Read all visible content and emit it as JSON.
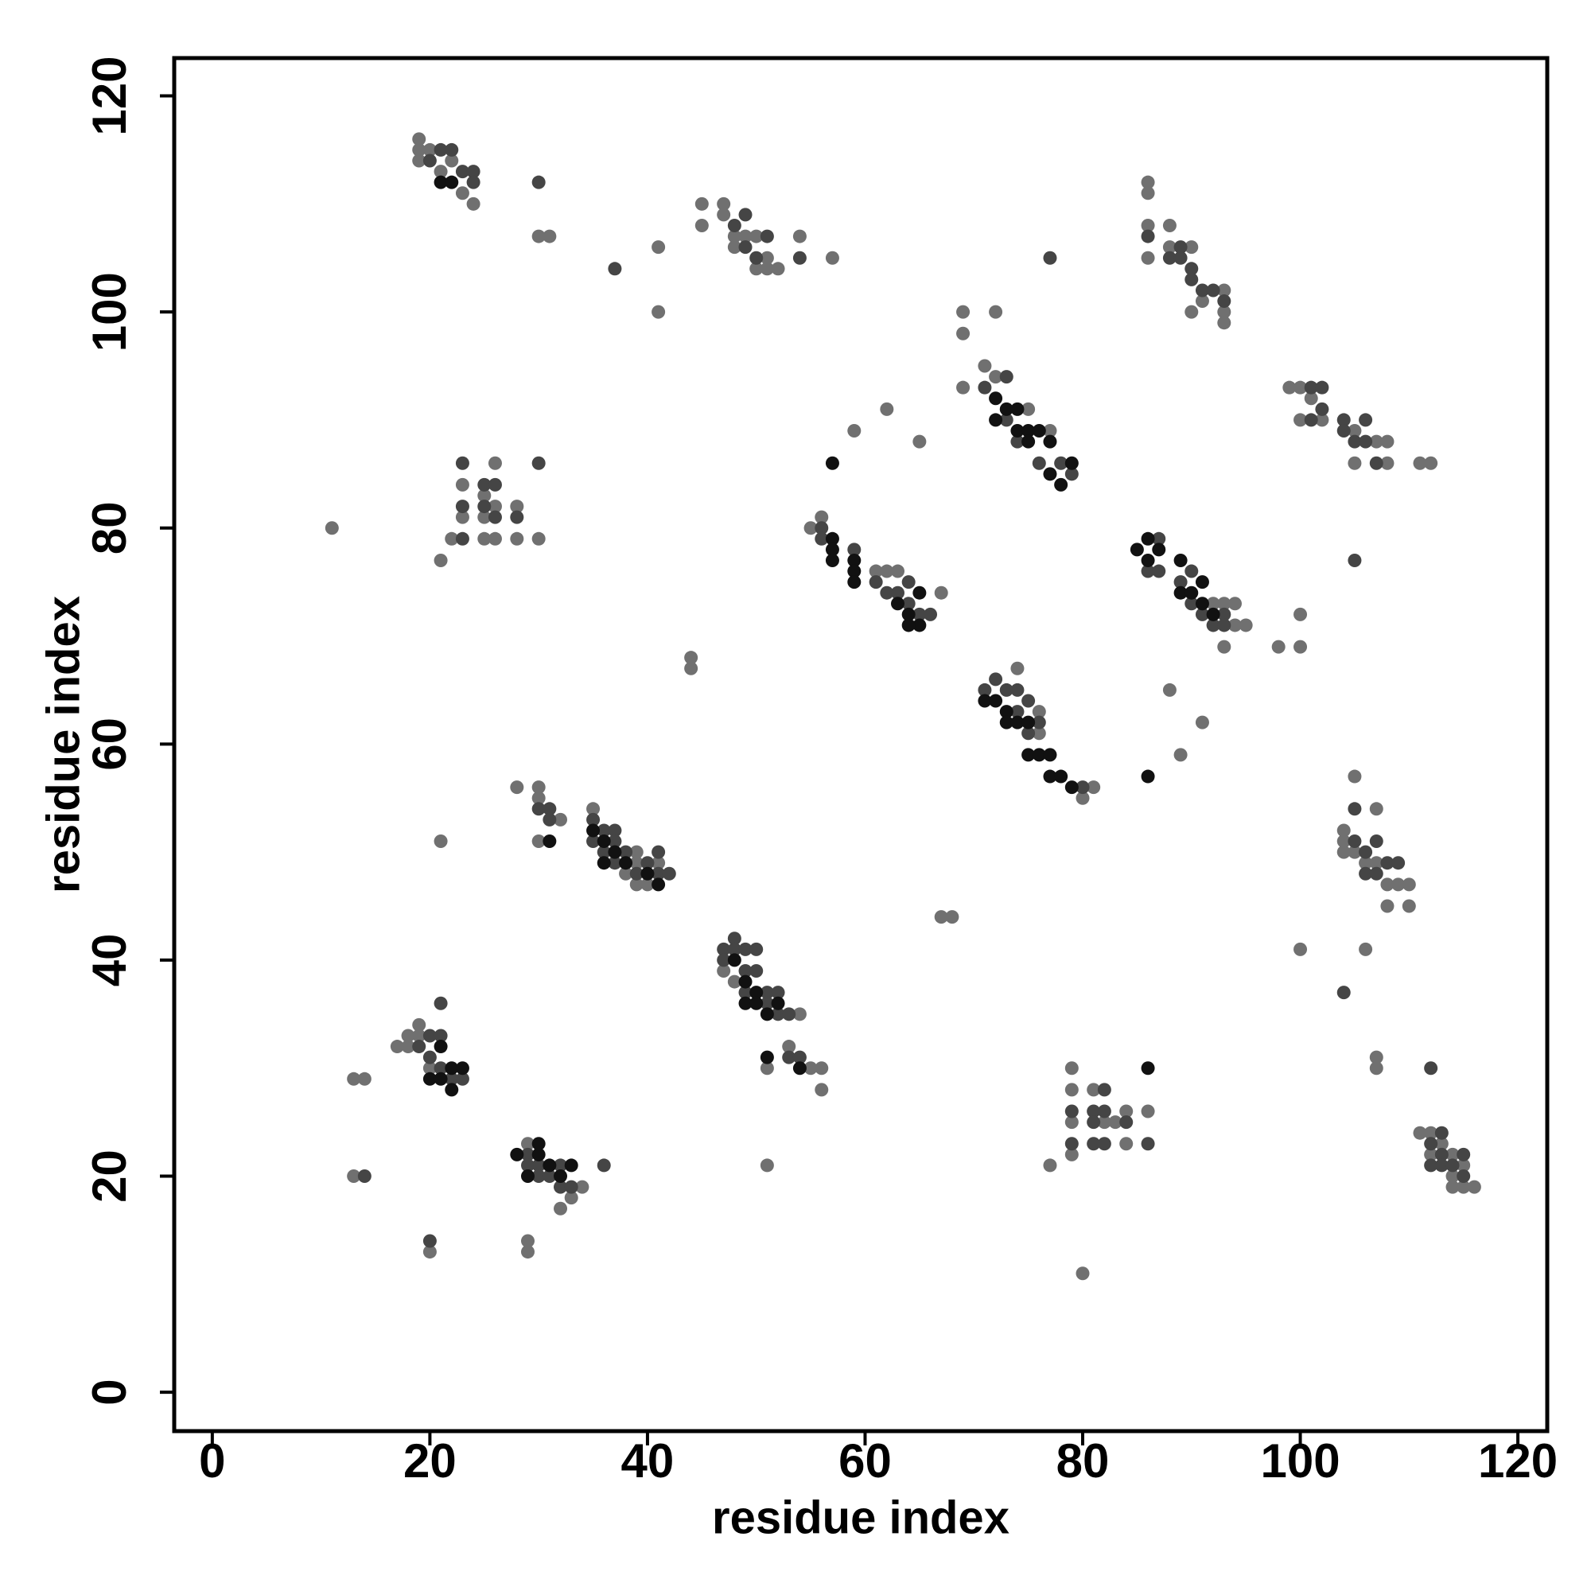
{
  "chart_data": {
    "type": "scatter",
    "x_label": "residue index",
    "y_label": "residue index",
    "xlim": [
      -3.5,
      122.7
    ],
    "ylim": [
      -3.6,
      123.5
    ],
    "xticks": [
      0,
      20,
      40,
      60,
      80,
      100,
      120
    ],
    "yticks": [
      0,
      20,
      40,
      60,
      80,
      100,
      120
    ],
    "grid": false,
    "series": [
      {
        "color": "#707070",
        "x": [
          19,
          19,
          19,
          20,
          21,
          22,
          23,
          24,
          30,
          31,
          41,
          41,
          45,
          45,
          47,
          47,
          48,
          48,
          49,
          50,
          50,
          51,
          51,
          52,
          54,
          57,
          86,
          86,
          86,
          86,
          88,
          88,
          90,
          90,
          91,
          93,
          93,
          93,
          69,
          69,
          69,
          72,
          71,
          72,
          75,
          77,
          59,
          62,
          65,
          99,
          100,
          100,
          101,
          102,
          105,
          105,
          107,
          108,
          108,
          111,
          112,
          11,
          21,
          22,
          23,
          23,
          25,
          25,
          25,
          26,
          26,
          26,
          28,
          28,
          30,
          55,
          56,
          61,
          62,
          63,
          67,
          92,
          93,
          94,
          94,
          95,
          93,
          98,
          100,
          100,
          44,
          44,
          74,
          76,
          76,
          80,
          81,
          88,
          91,
          89,
          28,
          30,
          30,
          32,
          30,
          21,
          35,
          39,
          39,
          39,
          40,
          41,
          38,
          105,
          107,
          104,
          104,
          104,
          105,
          106,
          107,
          108,
          108,
          109,
          110,
          110,
          67,
          68,
          100,
          106,
          47,
          48,
          54,
          53,
          55,
          56,
          56,
          51,
          17,
          18,
          18,
          19,
          19,
          20,
          13,
          14,
          107,
          107,
          79,
          79,
          79,
          79,
          81,
          82,
          83,
          84,
          84,
          86,
          77,
          80,
          29,
          32,
          33,
          34,
          13,
          20,
          29,
          29,
          51,
          111,
          112,
          112,
          113,
          114,
          114,
          114,
          115,
          115,
          116
        ],
        "values": [
          116,
          115,
          114,
          115,
          113,
          114,
          111,
          110,
          107,
          107,
          106,
          100,
          110,
          108,
          110,
          109,
          107,
          106,
          107,
          107,
          104,
          105,
          104,
          104,
          107,
          105,
          112,
          111,
          108,
          105,
          108,
          106,
          106,
          100,
          101,
          102,
          100,
          99,
          100,
          98,
          93,
          100,
          95,
          94,
          91,
          89,
          89,
          91,
          88,
          93,
          93,
          90,
          92,
          90,
          89,
          86,
          88,
          88,
          86,
          86,
          86,
          80,
          77,
          79,
          84,
          81,
          83,
          81,
          79,
          86,
          82,
          79,
          82,
          79,
          79,
          80,
          81,
          76,
          76,
          76,
          74,
          73,
          73,
          73,
          71,
          71,
          69,
          69,
          72,
          69,
          68,
          67,
          67,
          63,
          61,
          55,
          56,
          65,
          62,
          59,
          56,
          56,
          55,
          53,
          51,
          51,
          54,
          50,
          49,
          47,
          47,
          49,
          48,
          57,
          54,
          52,
          51,
          50,
          50,
          49,
          49,
          47,
          45,
          47,
          47,
          45,
          44,
          44,
          41,
          41,
          39,
          38,
          35,
          32,
          30,
          30,
          28,
          30,
          32,
          33,
          32,
          34,
          33,
          30,
          29,
          29,
          31,
          30,
          30,
          28,
          25,
          22,
          28,
          25,
          25,
          26,
          23,
          26,
          21,
          11,
          23,
          17,
          18,
          19,
          20,
          13,
          14,
          13,
          21,
          24,
          24,
          22,
          23,
          22,
          20,
          19,
          21,
          19,
          19
        ]
      },
      {
        "color": "#454545",
        "x": [
          21,
          22,
          20,
          23,
          24,
          24,
          30,
          37,
          48,
          49,
          49,
          50,
          51,
          54,
          77,
          86,
          88,
          89,
          89,
          90,
          90,
          91,
          92,
          93,
          71,
          73,
          73,
          74,
          76,
          78,
          79,
          101,
          102,
          102,
          101,
          104,
          104,
          105,
          106,
          106,
          107,
          23,
          23,
          23,
          25,
          25,
          26,
          26,
          30,
          28,
          56,
          56,
          59,
          61,
          62,
          63,
          64,
          64,
          65,
          66,
          86,
          87,
          87,
          89,
          90,
          90,
          91,
          92,
          93,
          93,
          105,
          71,
          72,
          73,
          74,
          74,
          75,
          75,
          76,
          80,
          30,
          31,
          31,
          35,
          35,
          36,
          36,
          37,
          37,
          37,
          38,
          39,
          40,
          41,
          41,
          42,
          47,
          47,
          48,
          48,
          49,
          49,
          49,
          50,
          50,
          51,
          51,
          52,
          52,
          53,
          53,
          54,
          105,
          105,
          106,
          106,
          107,
          107,
          108,
          109,
          104,
          19,
          20,
          20,
          21,
          21,
          21,
          22,
          23,
          112,
          79,
          79,
          81,
          81,
          81,
          82,
          82,
          82,
          84,
          86,
          29,
          29,
          30,
          30,
          31,
          32,
          32,
          33,
          36,
          112,
          112,
          113,
          113,
          113,
          114,
          115,
          115,
          14,
          20
        ],
        "values": [
          115,
          115,
          114,
          113,
          113,
          112,
          112,
          104,
          108,
          109,
          106,
          105,
          107,
          105,
          105,
          107,
          105,
          106,
          105,
          104,
          103,
          102,
          102,
          101,
          93,
          94,
          90,
          88,
          86,
          86,
          85,
          93,
          93,
          91,
          90,
          90,
          89,
          88,
          90,
          88,
          86,
          86,
          82,
          79,
          84,
          82,
          81,
          84,
          86,
          81,
          80,
          79,
          78,
          75,
          74,
          74,
          75,
          73,
          72,
          72,
          76,
          79,
          76,
          75,
          76,
          73,
          72,
          71,
          72,
          71,
          77,
          65,
          66,
          65,
          65,
          63,
          64,
          61,
          62,
          56,
          54,
          54,
          53,
          53,
          51,
          52,
          50,
          52,
          51,
          49,
          50,
          48,
          49,
          50,
          48,
          48,
          41,
          40,
          42,
          41,
          41,
          39,
          37,
          41,
          39,
          37,
          36,
          37,
          35,
          35,
          31,
          31,
          54,
          51,
          50,
          48,
          51,
          48,
          49,
          49,
          37,
          32,
          33,
          31,
          33,
          36,
          30,
          29,
          29,
          30,
          26,
          23,
          26,
          25,
          23,
          28,
          26,
          23,
          25,
          23,
          22,
          21,
          21,
          20,
          20,
          21,
          19,
          19,
          21,
          23,
          21,
          24,
          22,
          21,
          21,
          22,
          20,
          20,
          14
        ]
      },
      {
        "color": "#111111",
        "x": [
          72,
          73,
          72,
          74,
          74,
          75,
          75,
          76,
          77,
          77,
          78,
          79,
          57,
          57,
          57,
          57,
          59,
          59,
          59,
          63,
          64,
          65,
          64,
          65,
          85,
          86,
          86,
          87,
          89,
          89,
          90,
          91,
          91,
          92,
          71,
          72,
          73,
          73,
          74,
          75,
          75,
          76,
          77,
          77,
          78,
          79,
          86,
          31,
          35,
          36,
          36,
          37,
          38,
          40,
          41,
          48,
          49,
          49,
          50,
          50,
          51,
          52,
          51,
          54,
          20,
          21,
          21,
          22,
          22,
          23,
          28,
          29,
          30,
          30,
          31,
          32,
          33,
          86,
          21,
          22
        ],
        "values": [
          92,
          91,
          90,
          91,
          89,
          89,
          88,
          89,
          88,
          85,
          84,
          86,
          86,
          79,
          78,
          77,
          77,
          76,
          75,
          73,
          72,
          71,
          71,
          74,
          78,
          79,
          77,
          78,
          77,
          74,
          74,
          75,
          73,
          72,
          64,
          64,
          63,
          62,
          62,
          62,
          59,
          59,
          59,
          57,
          57,
          56,
          57,
          51,
          52,
          51,
          49,
          50,
          49,
          48,
          47,
          40,
          38,
          36,
          37,
          36,
          35,
          36,
          31,
          30,
          29,
          32,
          29,
          30,
          28,
          30,
          22,
          20,
          23,
          22,
          21,
          20,
          21,
          30,
          112,
          112
        ]
      }
    ]
  }
}
